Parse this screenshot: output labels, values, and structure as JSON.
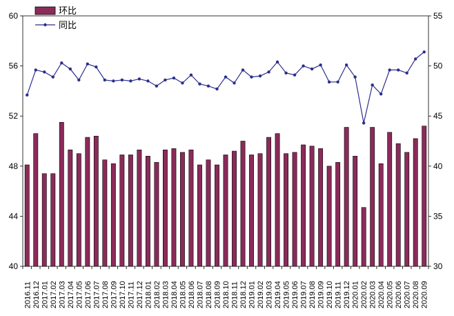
{
  "chart_data": {
    "type": "bar+line",
    "categories": [
      "2016.11",
      "2016.12",
      "2017.01",
      "2017.02",
      "2017.03",
      "2017.04",
      "2017.05",
      "2017.06",
      "2017.07",
      "2017.08",
      "2017.09",
      "2017.10",
      "2017.11",
      "2017.12",
      "2018.01",
      "2018.02",
      "2018.03",
      "2018.04",
      "2018.05",
      "2018.06",
      "2018.07",
      "2018.08",
      "2018.09",
      "2018.10",
      "2018.11",
      "2018.12",
      "2019.01",
      "2019.02",
      "2019.03",
      "2019.04",
      "2019.05",
      "2019.06",
      "2019.07",
      "2019.08",
      "2019.09",
      "2019.10",
      "2019.11",
      "2019.12",
      "2020.01",
      "2020.02",
      "2020.03",
      "2020.04",
      "2020.05",
      "2020.06",
      "2020.07",
      "2020.08",
      "2020.09"
    ],
    "series": [
      {
        "name": "环比",
        "axis": "left",
        "type": "bar",
        "color": "#8B2B5A",
        "values": [
          48.1,
          50.6,
          47.4,
          47.4,
          51.5,
          49.3,
          49.0,
          50.3,
          50.4,
          48.5,
          48.2,
          48.9,
          48.9,
          49.3,
          48.8,
          48.3,
          49.3,
          49.4,
          49.1,
          49.3,
          48.1,
          48.5,
          48.1,
          48.9,
          49.2,
          50.0,
          48.9,
          49.0,
          50.3,
          50.6,
          49.0,
          49.1,
          49.7,
          49.6,
          49.4,
          48.0,
          48.3,
          51.1,
          48.8,
          44.7,
          51.1,
          48.2,
          50.7,
          49.8,
          49.1,
          50.2,
          51.2
        ]
      },
      {
        "name": "同比",
        "axis": "right",
        "type": "line",
        "color": "#2B2E8C",
        "values": [
          47.1,
          49.6,
          49.4,
          48.9,
          50.3,
          49.7,
          48.6,
          50.2,
          49.9,
          48.6,
          48.5,
          48.6,
          48.5,
          48.7,
          48.5,
          48.0,
          48.6,
          48.8,
          48.3,
          49.1,
          48.2,
          48.0,
          47.7,
          48.9,
          48.3,
          49.6,
          48.9,
          49.0,
          49.4,
          50.4,
          49.3,
          49.1,
          50.0,
          49.7,
          50.1,
          48.4,
          48.4,
          50.1,
          48.9,
          44.3,
          48.1,
          47.2,
          49.6,
          49.6,
          49.3,
          50.7,
          51.4
        ]
      }
    ],
    "y_left": {
      "ticks": [
        40,
        44,
        48,
        52,
        56,
        60
      ],
      "range": [
        40,
        60
      ]
    },
    "y_right": {
      "ticks": [
        30,
        35,
        40,
        45,
        50,
        55
      ],
      "range": [
        30,
        55
      ]
    },
    "grid": false,
    "legend": {
      "placement": "top-left",
      "items": [
        "环比",
        "同比"
      ]
    }
  }
}
